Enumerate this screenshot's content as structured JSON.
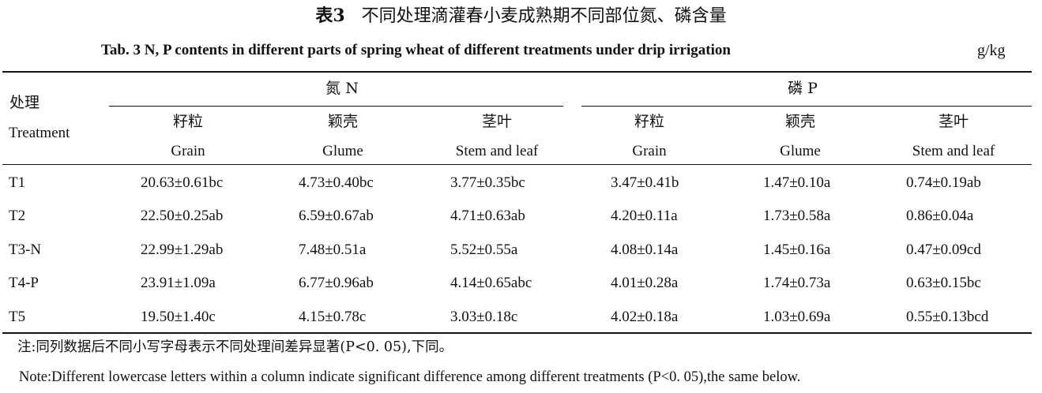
{
  "caption": {
    "zh_prefix": "表3",
    "zh_title": "不同处理滴灌春小麦成熟期不同部位氮、磷含量",
    "en": "Tab. 3    N, P contents in different parts of spring wheat of different treatments under drip irrigation",
    "unit": "g/kg"
  },
  "header": {
    "treatment_zh": "处理",
    "treatment_en": "Treatment",
    "groups": [
      {
        "label": "氮 N"
      },
      {
        "label": "磷 P"
      }
    ],
    "columns": [
      {
        "zh": "籽粒",
        "en": "Grain"
      },
      {
        "zh": "颖壳",
        "en": "Glume"
      },
      {
        "zh": "茎叶",
        "en": "Stem and leaf"
      },
      {
        "zh": "籽粒",
        "en": "Grain"
      },
      {
        "zh": "颖壳",
        "en": "Glume"
      },
      {
        "zh": "茎叶",
        "en": "Stem and leaf"
      }
    ]
  },
  "rows": [
    {
      "treatment": "T1",
      "values": [
        "20.63±0.61bc",
        "4.73±0.40bc",
        "3.77±0.35bc",
        "3.47±0.41b",
        "1.47±0.10a",
        "0.74±0.19ab"
      ]
    },
    {
      "treatment": "T2",
      "values": [
        "22.50±0.25ab",
        "6.59±0.67ab",
        "4.71±0.63ab",
        "4.20±0.11a",
        "1.73±0.58a",
        "0.86±0.04a"
      ]
    },
    {
      "treatment": "T3-N",
      "values": [
        "22.99±1.29ab",
        "7.48±0.51a",
        "5.52±0.55a",
        "4.08±0.14a",
        "1.45±0.16a",
        "0.47±0.09cd"
      ]
    },
    {
      "treatment": "T4-P",
      "values": [
        "23.91±1.09a",
        "6.77±0.96ab",
        "4.14±0.65abc",
        "4.01±0.28a",
        "1.74±0.73a",
        "0.63±0.15bc"
      ]
    },
    {
      "treatment": "T5",
      "values": [
        "19.50±1.40c",
        "4.15±0.78c",
        "3.03±0.18c",
        "4.02±0.18a",
        "1.03±0.69a",
        "0.55±0.13bcd"
      ]
    }
  ],
  "notes": {
    "zh": "注:同列数据后不同小写字母表示不同处理间差异显著(P<0. 05),下同。",
    "en": "Note:Different lowercase letters within a column indicate significant difference among different treatments (P<0. 05),the same below."
  }
}
